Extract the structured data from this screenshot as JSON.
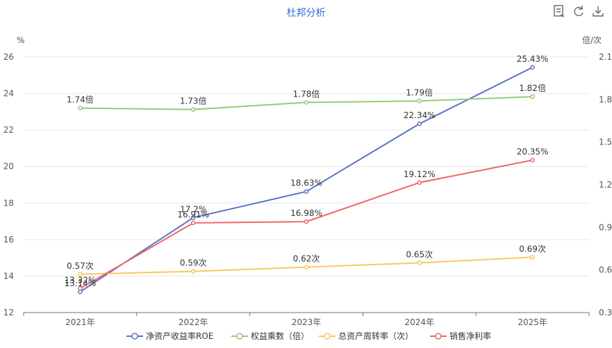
{
  "chart_data": {
    "type": "line",
    "title": "杜邦分析",
    "categories": [
      "2021年",
      "2022年",
      "2023年",
      "2024年",
      "2025年"
    ],
    "left_axis": {
      "unit": "%",
      "ticks": [
        "12",
        "14",
        "16",
        "18",
        "20",
        "22",
        "24",
        "26"
      ],
      "min": 12,
      "max": 26
    },
    "right_axis": {
      "unit": "倍/次",
      "ticks": [
        "0.3",
        "0.6",
        "0.9",
        "1.2",
        "1.5",
        "1.8",
        "2.1"
      ],
      "min": 0.3,
      "max": 2.1
    },
    "grid": true,
    "legend_position": "bottom",
    "series": [
      {
        "name": "净资产收益率ROE",
        "axis": "left",
        "color": "#5b73c7",
        "values": [
          13.14,
          17.2,
          18.63,
          22.34,
          25.43
        ],
        "labels": [
          "13.14%",
          "17.2%",
          "18.63%",
          "22.34%",
          "25.43%"
        ]
      },
      {
        "name": "权益乘数（倍）",
        "axis": "right",
        "color": "#91cc75",
        "values": [
          1.74,
          1.73,
          1.78,
          1.79,
          1.82
        ],
        "labels": [
          "1.74倍",
          "1.73倍",
          "1.78倍",
          "1.79倍",
          "1.82倍"
        ]
      },
      {
        "name": "总资产周转率（次）",
        "axis": "right",
        "color": "#fac858",
        "values": [
          0.57,
          0.59,
          0.62,
          0.65,
          0.69
        ],
        "labels": [
          "0.57次",
          "0.59次",
          "0.62次",
          "0.65次",
          "0.69次"
        ]
      },
      {
        "name": "销售净利率",
        "axis": "left",
        "color": "#ee6666",
        "values": [
          13.32,
          16.91,
          16.98,
          19.12,
          20.35
        ],
        "labels": [
          "13.32%",
          "16.91%",
          "16.98%",
          "19.12%",
          "20.35%"
        ]
      }
    ]
  },
  "toolbar": {
    "icons": [
      "data-view-icon",
      "refresh-icon",
      "download-icon"
    ]
  }
}
